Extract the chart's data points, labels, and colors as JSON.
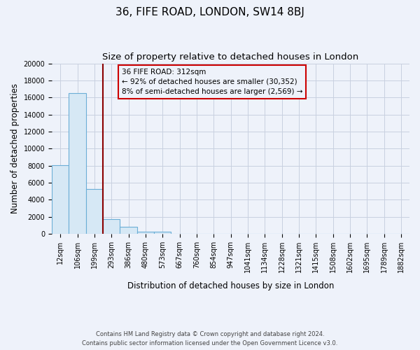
{
  "title": "36, FIFE ROAD, LONDON, SW14 8BJ",
  "subtitle": "Size of property relative to detached houses in London",
  "xlabel": "Distribution of detached houses by size in London",
  "ylabel": "Number of detached properties",
  "bar_color": "#d6e8f5",
  "bar_edge_color": "#6baed6",
  "bin_labels": [
    "12sqm",
    "106sqm",
    "199sqm",
    "293sqm",
    "386sqm",
    "480sqm",
    "573sqm",
    "667sqm",
    "760sqm",
    "854sqm",
    "947sqm",
    "1041sqm",
    "1134sqm",
    "1228sqm",
    "1321sqm",
    "1415sqm",
    "1508sqm",
    "1602sqm",
    "1695sqm",
    "1789sqm",
    "1882sqm"
  ],
  "bar_heights": [
    8100,
    16500,
    5300,
    1750,
    800,
    300,
    270,
    0,
    0,
    0,
    0,
    0,
    0,
    0,
    0,
    0,
    0,
    0,
    0,
    0,
    0
  ],
  "ylim": [
    0,
    20000
  ],
  "yticks": [
    0,
    2000,
    4000,
    6000,
    8000,
    10000,
    12000,
    14000,
    16000,
    18000,
    20000
  ],
  "vline_color": "#8b0000",
  "annotation_line1": "36 FIFE ROAD: 312sqm",
  "annotation_line2": "← 92% of detached houses are smaller (30,352)",
  "annotation_line3": "8% of semi-detached houses are larger (2,569) →",
  "footer_line1": "Contains HM Land Registry data © Crown copyright and database right 2024.",
  "footer_line2": "Contains public sector information licensed under the Open Government Licence v3.0.",
  "background_color": "#eef2fa",
  "grid_color": "#c8d0e0",
  "title_fontsize": 11,
  "subtitle_fontsize": 9.5,
  "axis_label_fontsize": 8.5,
  "tick_fontsize": 7,
  "footer_fontsize": 6,
  "num_bins": 21
}
